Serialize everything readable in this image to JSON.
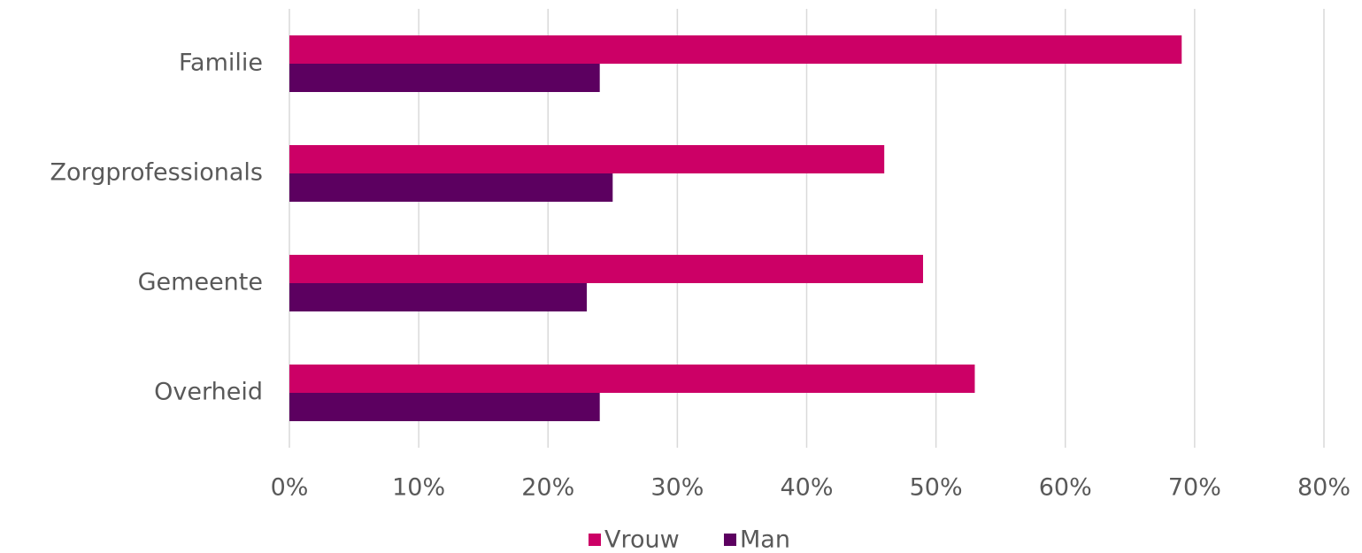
{
  "chart_data": {
    "type": "hbar",
    "categories": [
      "Familie",
      "Zorgprofessionals",
      "Gemeente",
      "Overheid"
    ],
    "series": [
      {
        "name": "Vrouw",
        "color": "#cc0066",
        "values": [
          69,
          46,
          49,
          53
        ]
      },
      {
        "name": "Man",
        "color": "#5c0060",
        "values": [
          24,
          25,
          23,
          24
        ]
      }
    ],
    "xlim": [
      0,
      80
    ],
    "xticks": [
      {
        "value": 0,
        "label": "0%"
      },
      {
        "value": 10,
        "label": "10%"
      },
      {
        "value": 20,
        "label": "20%"
      },
      {
        "value": 30,
        "label": "30%"
      },
      {
        "value": 40,
        "label": "40%"
      },
      {
        "value": 50,
        "label": "50%"
      },
      {
        "value": 60,
        "label": "60%"
      },
      {
        "value": 70,
        "label": "70%"
      },
      {
        "value": 80,
        "label": "80%"
      }
    ],
    "grid": true,
    "legend": "bottom"
  }
}
